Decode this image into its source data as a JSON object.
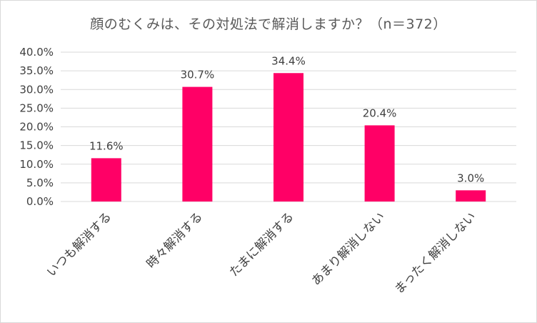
{
  "chart_data": {
    "type": "bar",
    "title": "顔のむくみは、その対処法で解消しますか？（n＝372）",
    "categories": [
      "いつも解消する",
      "時々解消する",
      "たまに解消する",
      "あまり解消しない",
      "まったく解消しない"
    ],
    "values": [
      11.6,
      30.7,
      34.4,
      20.4,
      3.0
    ],
    "data_labels": [
      "11.6%",
      "30.7%",
      "34.4%",
      "20.4%",
      "3.0%"
    ],
    "ylim": [
      0,
      40
    ],
    "y_ticks": [
      "0.0%",
      "5.0%",
      "10.0%",
      "15.0%",
      "20.0%",
      "25.0%",
      "30.0%",
      "35.0%",
      "40.0%"
    ],
    "xlabel": "",
    "ylabel": "",
    "grid": true,
    "legend": "none",
    "colors": {
      "bar": "#ff0066",
      "grid": "#d9d9d9",
      "text": "#404040",
      "title": "#595959"
    }
  }
}
